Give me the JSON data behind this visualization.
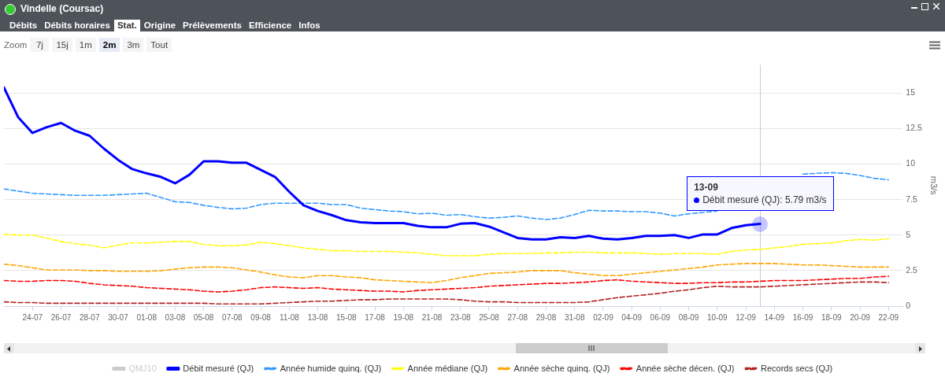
{
  "chart_data": {
    "type": "line",
    "title": "Vindelle (Coursac)",
    "ylabel": "m3/s",
    "legend": "bottom",
    "grid": "y",
    "marker": "none",
    "x": [
      "--07-22",
      "--07-23",
      "--07-24",
      "--07-25",
      "--07-26",
      "--07-27",
      "--07-28",
      "--07-29",
      "--07-30",
      "--07-31",
      "--08-01",
      "--08-02",
      "--08-03",
      "--08-04",
      "--08-05",
      "--08-06",
      "--08-07",
      "--08-08",
      "--08-09",
      "--08-10",
      "--08-11",
      "--08-12",
      "--08-13",
      "--08-14",
      "--08-15",
      "--08-16",
      "--08-17",
      "--08-18",
      "--08-19",
      "--08-20",
      "--08-21",
      "--08-22",
      "--08-23",
      "--08-24",
      "--08-25",
      "--08-26",
      "--08-27",
      "--08-28",
      "--08-29",
      "--08-30",
      "--08-31",
      "--09-01",
      "--09-02",
      "--09-03",
      "--09-04",
      "--09-05",
      "--09-06",
      "--09-07",
      "--09-08",
      "--09-09",
      "--09-10",
      "--09-11",
      "--09-12",
      "--09-13",
      "--09-14",
      "--09-15",
      "--09-16",
      "--09-17",
      "--09-18",
      "--09-19",
      "--09-20",
      "--09-21",
      "--09-22"
    ],
    "xlim": [
      "--07-22",
      "--09-23"
    ],
    "xticks": [
      {
        "value": "--07-24",
        "label": "24-07"
      },
      {
        "value": "--07-26",
        "label": "26-07"
      },
      {
        "value": "--07-28",
        "label": "28-07"
      },
      {
        "value": "--07-30",
        "label": "30-07"
      },
      {
        "value": "--08-01",
        "label": "01-08"
      },
      {
        "value": "--08-03",
        "label": "03-08"
      },
      {
        "value": "--08-05",
        "label": "05-08"
      },
      {
        "value": "--08-07",
        "label": "07-08"
      },
      {
        "value": "--08-09",
        "label": "09-08"
      },
      {
        "value": "--08-11",
        "label": "11-08"
      },
      {
        "value": "--08-13",
        "label": "13-08"
      },
      {
        "value": "--08-15",
        "label": "15-08"
      },
      {
        "value": "--08-17",
        "label": "17-08"
      },
      {
        "value": "--08-19",
        "label": "19-08"
      },
      {
        "value": "--08-21",
        "label": "21-08"
      },
      {
        "value": "--08-23",
        "label": "23-08"
      },
      {
        "value": "--08-25",
        "label": "25-08"
      },
      {
        "value": "--08-27",
        "label": "27-08"
      },
      {
        "value": "--08-29",
        "label": "29-08"
      },
      {
        "value": "--08-31",
        "label": "31-08"
      },
      {
        "value": "--09-02",
        "label": "02-09"
      },
      {
        "value": "--09-04",
        "label": "04-09"
      },
      {
        "value": "--09-06",
        "label": "06-09"
      },
      {
        "value": "--09-08",
        "label": "08-09"
      },
      {
        "value": "--09-10",
        "label": "10-09"
      },
      {
        "value": "--09-12",
        "label": "12-09"
      },
      {
        "value": "--09-14",
        "label": "14-09"
      },
      {
        "value": "--09-16",
        "label": "16-09"
      },
      {
        "value": "--09-18",
        "label": "18-09"
      },
      {
        "value": "--09-20",
        "label": "20-09"
      },
      {
        "value": "--09-22",
        "label": "22-09"
      }
    ],
    "ref_lines": [
      {
        "axis": "x",
        "value": "--09-13",
        "color": "#cccccc"
      }
    ],
    "ylim": [
      0,
      17
    ],
    "yticks": [
      0,
      2.5,
      5,
      7.5,
      10,
      12.5,
      15
    ],
    "series": [
      {
        "name": "QMJ10",
        "color": "#cccccc",
        "line_style": "solid",
        "values": [
          null,
          null,
          null,
          null,
          null,
          null,
          null,
          null,
          null,
          null,
          null,
          null,
          null,
          null,
          null,
          null,
          null,
          null,
          null,
          null,
          null,
          null,
          null,
          null,
          null,
          null,
          null,
          null,
          null,
          null,
          null,
          null,
          null,
          null,
          null,
          null,
          null,
          null,
          null,
          null,
          null,
          null,
          null,
          null,
          null,
          null,
          null,
          null,
          null,
          null,
          null,
          null,
          null,
          null,
          null,
          null,
          null,
          null,
          null,
          null,
          null,
          null,
          null
        ]
      },
      {
        "name": "Débit mesuré (QJ)",
        "color": "#0000ff",
        "line_style": "solid",
        "values": [
          15.4,
          13.3,
          12.2,
          12.6,
          12.9,
          12.35,
          12.0,
          11.1,
          10.3,
          9.65,
          9.35,
          9.1,
          8.65,
          9.25,
          10.2,
          10.2,
          10.1,
          10.1,
          9.6,
          9.1,
          8.05,
          7.1,
          6.7,
          6.4,
          6.05,
          5.9,
          5.85,
          5.85,
          5.85,
          5.65,
          5.55,
          5.55,
          5.8,
          5.85,
          5.6,
          5.2,
          4.8,
          4.7,
          4.7,
          4.85,
          4.8,
          4.95,
          4.75,
          4.7,
          4.8,
          4.95,
          4.95,
          5.0,
          4.8,
          5.05,
          5.05,
          5.5,
          5.7,
          5.79,
          null,
          null,
          null,
          null,
          null,
          null,
          null,
          null,
          null
        ]
      },
      {
        "name": "Année humide quinq. (QJ)",
        "color": "#3399ff",
        "line_style": "dashed",
        "values": [
          8.25,
          8.1,
          7.95,
          7.9,
          7.85,
          7.8,
          7.8,
          7.8,
          7.85,
          7.9,
          7.95,
          7.65,
          7.35,
          7.3,
          7.1,
          6.95,
          6.85,
          6.9,
          7.15,
          7.25,
          7.25,
          7.25,
          7.25,
          7.15,
          7.15,
          6.9,
          6.8,
          6.7,
          6.65,
          6.5,
          6.55,
          6.4,
          6.45,
          6.3,
          6.2,
          6.25,
          6.35,
          6.2,
          6.1,
          6.2,
          6.45,
          6.75,
          6.7,
          6.7,
          6.65,
          6.65,
          6.55,
          6.35,
          6.5,
          6.6,
          6.7,
          null,
          null,
          null,
          null,
          null,
          9.3,
          9.35,
          9.4,
          9.35,
          9.2,
          9.0,
          8.9
        ]
      },
      {
        "name": "Année médiane (QJ)",
        "color": "#ffff00",
        "line_style": "dashed",
        "values": [
          5.05,
          5.0,
          5.0,
          4.8,
          4.55,
          4.4,
          4.3,
          4.1,
          4.3,
          4.45,
          4.45,
          4.5,
          4.55,
          4.55,
          4.35,
          4.25,
          4.25,
          4.3,
          4.5,
          4.4,
          4.25,
          4.1,
          4.0,
          3.9,
          3.9,
          3.85,
          3.85,
          3.85,
          3.8,
          3.75,
          3.65,
          3.55,
          3.55,
          3.55,
          3.65,
          3.7,
          3.7,
          3.7,
          3.75,
          3.75,
          3.8,
          3.8,
          3.75,
          3.75,
          3.75,
          3.7,
          3.65,
          3.7,
          3.7,
          3.7,
          3.65,
          3.85,
          3.95,
          4.0,
          4.1,
          4.2,
          4.35,
          4.4,
          4.45,
          4.6,
          4.7,
          4.65,
          4.75
        ]
      },
      {
        "name": "Année sèche quinq. (QJ)",
        "color": "#ffa500",
        "line_style": "dashed",
        "values": [
          2.95,
          2.85,
          2.7,
          2.55,
          2.55,
          2.55,
          2.5,
          2.5,
          2.45,
          2.45,
          2.45,
          2.5,
          2.6,
          2.7,
          2.75,
          2.75,
          2.7,
          2.55,
          2.4,
          2.2,
          2.05,
          2.0,
          2.15,
          2.15,
          2.05,
          2.0,
          1.85,
          1.8,
          1.75,
          1.7,
          1.65,
          1.8,
          2.0,
          2.15,
          2.3,
          2.35,
          2.4,
          2.5,
          2.5,
          2.5,
          2.35,
          2.25,
          2.15,
          2.15,
          2.25,
          2.35,
          2.45,
          2.55,
          2.65,
          2.75,
          2.9,
          2.95,
          3.0,
          3.0,
          3.0,
          2.95,
          2.9,
          2.9,
          2.85,
          2.8,
          2.75,
          2.75,
          2.75
        ]
      },
      {
        "name": "Année sèche décen. (QJ)",
        "color": "#ff0000",
        "line_style": "dashed",
        "values": [
          1.8,
          1.75,
          1.75,
          1.8,
          1.8,
          1.75,
          1.6,
          1.5,
          1.45,
          1.4,
          1.3,
          1.25,
          1.2,
          1.15,
          1.05,
          1.0,
          1.05,
          1.15,
          1.3,
          1.35,
          1.3,
          1.25,
          1.3,
          1.2,
          1.15,
          1.1,
          1.05,
          1.05,
          1.0,
          1.1,
          1.15,
          1.2,
          1.25,
          1.3,
          1.4,
          1.45,
          1.5,
          1.55,
          1.6,
          1.6,
          1.65,
          1.7,
          1.8,
          1.85,
          1.75,
          1.7,
          1.65,
          1.6,
          1.6,
          1.65,
          1.65,
          1.7,
          1.7,
          1.75,
          1.8,
          1.8,
          1.8,
          1.85,
          1.9,
          1.95,
          1.95,
          2.05,
          2.1
        ]
      },
      {
        "name": "Records secs (QJ)",
        "color": "#b22222",
        "line_style": "dashed",
        "values": [
          0.3,
          0.25,
          0.25,
          0.2,
          0.2,
          0.2,
          0.2,
          0.2,
          0.2,
          0.2,
          0.2,
          0.2,
          0.2,
          0.2,
          0.2,
          0.15,
          0.15,
          0.15,
          0.15,
          0.2,
          0.25,
          0.3,
          0.35,
          0.35,
          0.4,
          0.45,
          0.45,
          0.5,
          0.5,
          0.5,
          0.5,
          0.5,
          0.45,
          0.35,
          0.3,
          0.3,
          0.25,
          0.25,
          0.25,
          0.25,
          0.25,
          0.3,
          0.45,
          0.6,
          0.7,
          0.8,
          0.9,
          1.05,
          1.15,
          1.3,
          1.4,
          1.35,
          1.35,
          1.35,
          1.4,
          1.45,
          1.5,
          1.55,
          1.6,
          1.65,
          1.7,
          1.7,
          1.65
        ]
      }
    ],
    "annotations": [
      {
        "text": "13-09\nDébit mesuré (QJ): 5.79 m3/s",
        "x": "--09-13",
        "y": 5.79
      },
      "Débits",
      "Débits horaires",
      "Stat.",
      "Origine",
      "Prélèvements",
      "Efficience",
      "Infos",
      "Zoom",
      "7j",
      "15j",
      "1m",
      "2m",
      "3m",
      "Tout"
    ]
  }
}
